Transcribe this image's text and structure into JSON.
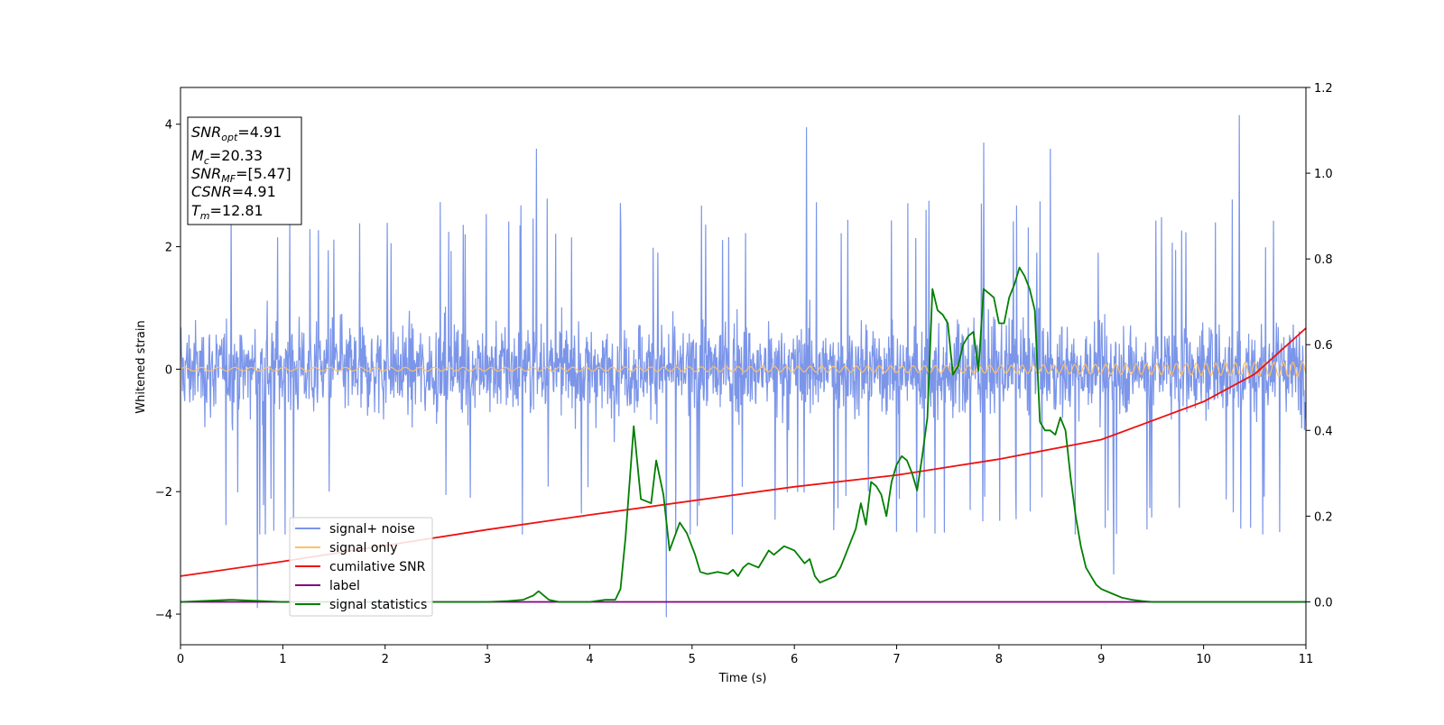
{
  "chart_data": {
    "type": "line",
    "xlabel": "Time (s)",
    "ylabel": "Whitened strain",
    "xlim": [
      0,
      11
    ],
    "ylim": [
      -4.5,
      4.6
    ],
    "y2lim": [
      -0.1,
      1.2
    ],
    "xticks": [
      "0",
      "1",
      "2",
      "3",
      "4",
      "5",
      "6",
      "7",
      "8",
      "9",
      "10",
      "11"
    ],
    "yticks": [
      "4",
      "2",
      "0",
      "−2",
      "−4"
    ],
    "ytick_values": [
      4,
      2,
      0,
      -2,
      -4
    ],
    "y2ticks": [
      "1.2",
      "1.0",
      "0.8",
      "0.6",
      "0.4",
      "0.2",
      "0.0"
    ],
    "y2tick_values": [
      1.2,
      1.0,
      0.8,
      0.6,
      0.4,
      0.2,
      0.0
    ],
    "grid": false,
    "legend_position": "lower-left",
    "annotation": {
      "lines": [
        {
          "symbol": "SNR",
          "sub": "opt",
          "value": "=4.91"
        },
        {
          "symbol": "M",
          "sub": "c",
          "value": "=20.33"
        },
        {
          "symbol": "SNR",
          "sub": "MF",
          "value": "=[5.47]"
        },
        {
          "symbol": "CSNR",
          "sub": "",
          "value": "=4.91"
        },
        {
          "symbol": "T",
          "sub": "m",
          "value": "=12.81"
        }
      ]
    },
    "series": [
      {
        "name": "signal+ noise",
        "color": "#7b95e9",
        "axis": "left",
        "kind": "noise",
        "std": 0.85,
        "envelope_top": 2.8,
        "envelope_bottom": -2.7,
        "extremes": [
          [
            0.75,
            -3.9
          ],
          [
            4.75,
            -4.05
          ],
          [
            6.12,
            3.95
          ],
          [
            10.35,
            4.15
          ],
          [
            9.12,
            -3.35
          ],
          [
            7.85,
            3.7
          ],
          [
            8.5,
            3.6
          ],
          [
            3.48,
            3.6
          ]
        ]
      },
      {
        "name": "signal only",
        "color": "#ffbf66",
        "axis": "left",
        "kind": "chirp",
        "amp_start": 0.03,
        "amp_end": 0.12
      },
      {
        "name": "cumilative SNR",
        "color": "#ee1111",
        "axis": "left",
        "x": [
          0,
          1,
          2,
          3,
          4,
          5,
          6,
          7,
          8,
          9,
          10,
          10.5,
          11
        ],
        "y": [
          -3.38,
          -3.14,
          -2.88,
          -2.62,
          -2.38,
          -2.15,
          -1.92,
          -1.73,
          -1.47,
          -1.15,
          -0.53,
          -0.08,
          0.67
        ]
      },
      {
        "name": "label",
        "color": "#800080",
        "axis": "right",
        "x": [
          0,
          11
        ],
        "y": [
          0.0,
          0.0
        ]
      },
      {
        "name": "signal statistics",
        "color": "#007f00",
        "axis": "right",
        "x": [
          0,
          0.5,
          1,
          1.5,
          2,
          2.5,
          3,
          3.2,
          3.35,
          3.45,
          3.5,
          3.55,
          3.6,
          3.7,
          3.8,
          4.0,
          4.15,
          4.25,
          4.3,
          4.35,
          4.43,
          4.5,
          4.6,
          4.65,
          4.72,
          4.78,
          4.88,
          4.95,
          5.03,
          5.08,
          5.15,
          5.25,
          5.35,
          5.4,
          5.45,
          5.5,
          5.55,
          5.6,
          5.65,
          5.7,
          5.75,
          5.8,
          5.85,
          5.9,
          6.0,
          6.1,
          6.15,
          6.2,
          6.25,
          6.3,
          6.35,
          6.4,
          6.45,
          6.5,
          6.55,
          6.6,
          6.65,
          6.7,
          6.75,
          6.8,
          6.85,
          6.9,
          6.95,
          7.0,
          7.05,
          7.1,
          7.15,
          7.2,
          7.25,
          7.3,
          7.35,
          7.4,
          7.45,
          7.5,
          7.55,
          7.6,
          7.65,
          7.7,
          7.75,
          7.8,
          7.85,
          7.9,
          7.95,
          8.0,
          8.05,
          8.1,
          8.15,
          8.2,
          8.25,
          8.3,
          8.35,
          8.4,
          8.45,
          8.5,
          8.55,
          8.6,
          8.65,
          8.7,
          8.75,
          8.8,
          8.85,
          8.9,
          8.95,
          9.0,
          9.1,
          9.2,
          9.3,
          9.4,
          9.5,
          9.7,
          10,
          11
        ],
        "y": [
          0.0,
          0.005,
          0.0,
          0.0,
          0.0,
          0.0,
          0.0,
          0.002,
          0.005,
          0.015,
          0.025,
          0.015,
          0.005,
          0.0,
          0.0,
          0.0,
          0.005,
          0.005,
          0.03,
          0.15,
          0.41,
          0.24,
          0.23,
          0.33,
          0.25,
          0.12,
          0.185,
          0.16,
          0.11,
          0.07,
          0.065,
          0.07,
          0.065,
          0.075,
          0.06,
          0.08,
          0.09,
          0.085,
          0.08,
          0.1,
          0.12,
          0.11,
          0.12,
          0.13,
          0.12,
          0.09,
          0.1,
          0.06,
          0.045,
          0.05,
          0.055,
          0.06,
          0.08,
          0.11,
          0.14,
          0.17,
          0.23,
          0.18,
          0.28,
          0.27,
          0.25,
          0.2,
          0.28,
          0.32,
          0.34,
          0.33,
          0.3,
          0.26,
          0.34,
          0.43,
          0.73,
          0.68,
          0.67,
          0.65,
          0.53,
          0.55,
          0.6,
          0.62,
          0.63,
          0.54,
          0.73,
          0.72,
          0.71,
          0.65,
          0.65,
          0.71,
          0.74,
          0.78,
          0.76,
          0.73,
          0.68,
          0.42,
          0.4,
          0.4,
          0.39,
          0.43,
          0.4,
          0.29,
          0.2,
          0.13,
          0.08,
          0.06,
          0.04,
          0.03,
          0.02,
          0.01,
          0.005,
          0.002,
          0.0,
          0.0,
          0.0,
          0.0
        ]
      }
    ]
  }
}
